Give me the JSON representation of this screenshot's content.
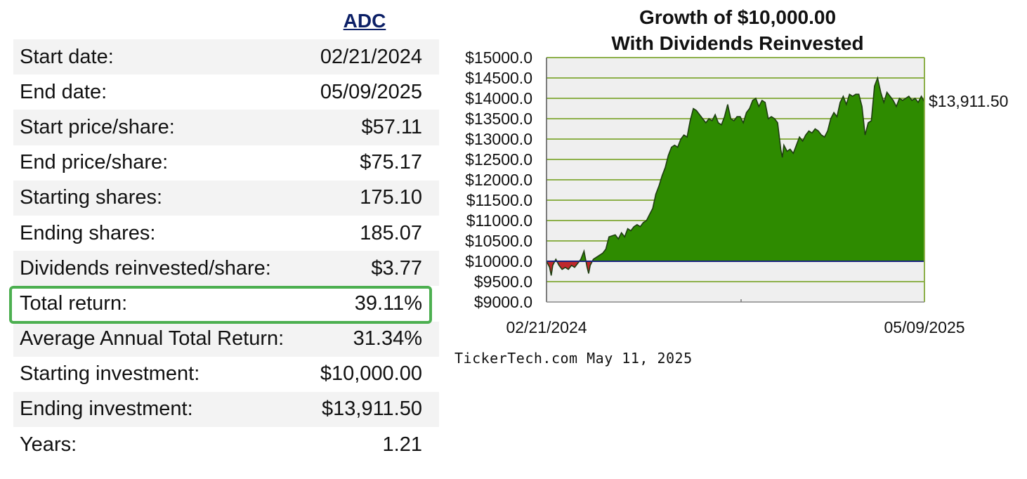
{
  "ticker": "ADC",
  "stats": [
    {
      "label": "Start date:",
      "value": "02/21/2024"
    },
    {
      "label": "End date:",
      "value": "05/09/2025"
    },
    {
      "label": "Start price/share:",
      "value": "$57.11"
    },
    {
      "label": "End price/share:",
      "value": "$75.17"
    },
    {
      "label": "Starting shares:",
      "value": "175.10"
    },
    {
      "label": "Ending shares:",
      "value": "185.07"
    },
    {
      "label": "Dividends reinvested/share:",
      "value": "$3.77"
    },
    {
      "label": "Total return:",
      "value": "39.11%"
    },
    {
      "label": "Average Annual Total Return:",
      "value": "31.34%"
    },
    {
      "label": "Starting investment:",
      "value": "$10,000.00"
    },
    {
      "label": "Ending investment:",
      "value": "$13,911.50"
    },
    {
      "label": "Years:",
      "value": "1.21"
    }
  ],
  "highlight_color": "#4caf50",
  "source": "TickerTech.com  May 11, 2025",
  "chart_data": {
    "type": "area",
    "title_line1": "Growth of $10,000.00",
    "title_line2": "With Dividends Reinvested",
    "end_label": "$13,911.50",
    "baseline": 10000,
    "ylim": [
      9000,
      15000
    ],
    "y_ticks": [
      "$9000.0",
      "$9500.0",
      "$10000.0",
      "$10500.0",
      "$11000.0",
      "$11500.0",
      "$12000.0",
      "$12500.0",
      "$13000.0",
      "$13500.0",
      "$14000.0",
      "$14500.0",
      "$15000.0"
    ],
    "y_tick_values": [
      9000,
      9500,
      10000,
      10500,
      11000,
      11500,
      12000,
      12500,
      13000,
      13500,
      14000,
      14500,
      15000
    ],
    "x_labels": [
      "02/21/2024",
      "05/09/2025"
    ],
    "xlim": [
      0,
      1.21
    ],
    "colors": {
      "gain": "#2e8b00",
      "loss": "#c0282d",
      "baseline": "#1a237e",
      "grid": "#8db04a",
      "plot_bg": "#efefef"
    },
    "series": [
      {
        "values": [
          [
            0.0,
            10000
          ],
          [
            0.01,
            9850
          ],
          [
            0.015,
            9650
          ],
          [
            0.02,
            9900
          ],
          [
            0.03,
            10050
          ],
          [
            0.04,
            9900
          ],
          [
            0.05,
            9800
          ],
          [
            0.06,
            9850
          ],
          [
            0.07,
            9800
          ],
          [
            0.08,
            9900
          ],
          [
            0.09,
            9850
          ],
          [
            0.1,
            9950
          ],
          [
            0.11,
            10050
          ],
          [
            0.12,
            10250
          ],
          [
            0.13,
            9850
          ],
          [
            0.135,
            9700
          ],
          [
            0.14,
            9900
          ],
          [
            0.15,
            10050
          ],
          [
            0.17,
            10150
          ],
          [
            0.18,
            10200
          ],
          [
            0.19,
            10300
          ],
          [
            0.2,
            10600
          ],
          [
            0.22,
            10650
          ],
          [
            0.23,
            10550
          ],
          [
            0.24,
            10700
          ],
          [
            0.25,
            10600
          ],
          [
            0.26,
            10800
          ],
          [
            0.27,
            10750
          ],
          [
            0.28,
            10850
          ],
          [
            0.29,
            10900
          ],
          [
            0.3,
            10850
          ],
          [
            0.31,
            10950
          ],
          [
            0.32,
            11000
          ],
          [
            0.33,
            11150
          ],
          [
            0.34,
            11300
          ],
          [
            0.35,
            11650
          ],
          [
            0.36,
            11850
          ],
          [
            0.37,
            12100
          ],
          [
            0.38,
            12300
          ],
          [
            0.39,
            12600
          ],
          [
            0.4,
            12800
          ],
          [
            0.41,
            12850
          ],
          [
            0.42,
            12800
          ],
          [
            0.43,
            13000
          ],
          [
            0.44,
            13100
          ],
          [
            0.45,
            13050
          ],
          [
            0.46,
            13450
          ],
          [
            0.47,
            13750
          ],
          [
            0.48,
            13700
          ],
          [
            0.49,
            13600
          ],
          [
            0.5,
            13500
          ],
          [
            0.51,
            13400
          ],
          [
            0.52,
            13500
          ],
          [
            0.53,
            13450
          ],
          [
            0.54,
            13600
          ],
          [
            0.55,
            13400
          ],
          [
            0.56,
            13350
          ],
          [
            0.57,
            13550
          ],
          [
            0.58,
            13850
          ],
          [
            0.59,
            13500
          ],
          [
            0.6,
            13450
          ],
          [
            0.61,
            13550
          ],
          [
            0.62,
            13550
          ],
          [
            0.63,
            13400
          ],
          [
            0.64,
            13650
          ],
          [
            0.65,
            13750
          ],
          [
            0.66,
            13950
          ],
          [
            0.67,
            14000
          ],
          [
            0.68,
            13800
          ],
          [
            0.69,
            13950
          ],
          [
            0.7,
            13900
          ],
          [
            0.71,
            13500
          ],
          [
            0.72,
            13550
          ],
          [
            0.73,
            13500
          ],
          [
            0.74,
            13400
          ],
          [
            0.75,
            12750
          ],
          [
            0.755,
            12550
          ],
          [
            0.76,
            12850
          ],
          [
            0.77,
            12700
          ],
          [
            0.78,
            12750
          ],
          [
            0.79,
            12650
          ],
          [
            0.8,
            12850
          ],
          [
            0.81,
            13050
          ],
          [
            0.82,
            12950
          ],
          [
            0.83,
            13100
          ],
          [
            0.84,
            13200
          ],
          [
            0.85,
            13150
          ],
          [
            0.86,
            13250
          ],
          [
            0.87,
            13200
          ],
          [
            0.88,
            13100
          ],
          [
            0.89,
            13050
          ],
          [
            0.9,
            13200
          ],
          [
            0.91,
            13500
          ],
          [
            0.92,
            13650
          ],
          [
            0.93,
            13550
          ],
          [
            0.94,
            13900
          ],
          [
            0.95,
            14050
          ],
          [
            0.96,
            13850
          ],
          [
            0.97,
            14100
          ],
          [
            0.98,
            14050
          ],
          [
            0.99,
            14100
          ],
          [
            1.0,
            14100
          ],
          [
            1.01,
            13800
          ],
          [
            1.02,
            13100
          ],
          [
            1.03,
            13400
          ],
          [
            1.04,
            13450
          ],
          [
            1.05,
            14300
          ],
          [
            1.06,
            14500
          ],
          [
            1.07,
            14150
          ],
          [
            1.08,
            13900
          ],
          [
            1.09,
            14150
          ],
          [
            1.1,
            14050
          ],
          [
            1.11,
            13950
          ],
          [
            1.12,
            13800
          ],
          [
            1.13,
            14000
          ],
          [
            1.14,
            13950
          ],
          [
            1.15,
            14000
          ],
          [
            1.16,
            14050
          ],
          [
            1.17,
            13950
          ],
          [
            1.18,
            14000
          ],
          [
            1.19,
            13900
          ],
          [
            1.2,
            14050
          ],
          [
            1.21,
            13911.5
          ]
        ]
      }
    ]
  }
}
